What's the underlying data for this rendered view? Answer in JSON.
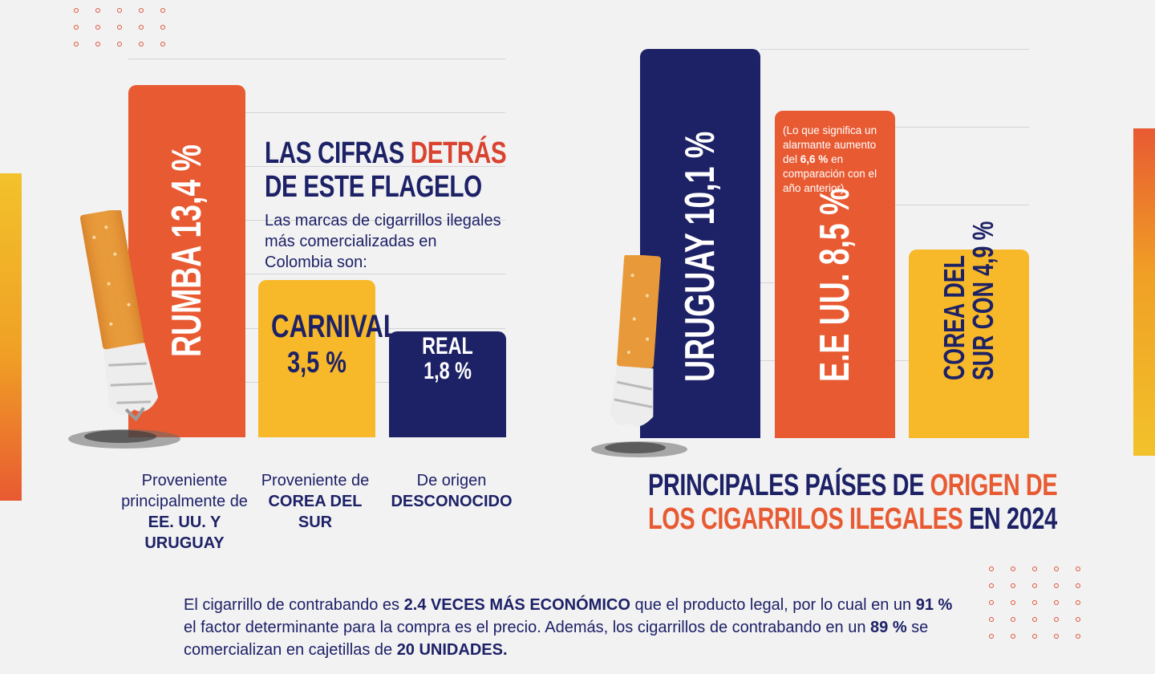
{
  "colors": {
    "navy": "#1d2166",
    "orange": "#e85a32",
    "yellow": "#f7b829",
    "red_accent": "#d9432f",
    "background": "#f2f2f3"
  },
  "left": {
    "title_part1": "LAS CIFRAS ",
    "title_accent": "DETRÁS",
    "title_line2": "DE ESTE FLAGELO",
    "subtitle": "Las marcas de cigarrillos ilegales más comercializadas en Colombia son:",
    "bar_labels": {
      "rumba": "RUMBA 13,4 %",
      "carnival_name": "CARNIVAL",
      "carnival_value": "3,5 %",
      "real_name": "REAL",
      "real_value": "1,8 %"
    },
    "captions": [
      {
        "pre": "Proveniente principalmente de ",
        "bold": "EE. UU. Y URUGUAY"
      },
      {
        "pre": "Proveniente de ",
        "bold": "COREA DEL SUR"
      },
      {
        "pre": "De origen ",
        "bold": "DESCONOCIDO"
      }
    ]
  },
  "right": {
    "bar_labels": {
      "uruguay": "URUGUAY 10,1 %",
      "eeuu": "E.E UU. 8,5 %",
      "corea_line1": "COREA DEL",
      "corea_line2": "SUR CON 4,9 %"
    },
    "note": {
      "pre": "(Lo que significa un alarmante aumento del ",
      "bold": "6,6 %",
      "post": " en comparación con el año anterior)"
    },
    "title_line1_a": "PRINCIPALES PAÍSES DE ",
    "title_line1_b": "ORIGEN DE",
    "title_line2_a": "LOS CIGARRILOS ILEGALES",
    "title_line2_b": " EN 2024"
  },
  "footer": {
    "p1": "El cigarrillo de contrabando es ",
    "b1": "2.4 VECES MÁS ECONÓMICO",
    "p2": " que el producto legal, por lo cual en un ",
    "b2": "91 %",
    "p3": " el factor determinante para la compra es el precio. Además, los cigarrillos de contrabando en un ",
    "b3": "89 %",
    "p4": " se comercializan en cajetillas de ",
    "b4": "20 UNIDADES."
  },
  "chart_data": [
    {
      "type": "bar",
      "categories": [
        "RUMBA",
        "CARNIVAL",
        "REAL"
      ],
      "values": [
        13.4,
        3.5,
        1.8
      ],
      "title": "LAS CIFRAS DETRÁS DE ESTE FLAGELO",
      "subtitle": "Las marcas de cigarrillos ilegales más comercializadas en Colombia son:",
      "unit": "%",
      "colors": [
        "#e85a32",
        "#f7b829",
        "#1d2166"
      ],
      "grid": true
    },
    {
      "type": "bar",
      "categories": [
        "URUGUAY",
        "E.E UU.",
        "COREA DEL SUR"
      ],
      "values": [
        10.1,
        8.5,
        4.9
      ],
      "title": "PRINCIPALES PAÍSES DE ORIGEN DE LOS CIGARRILOS ILEGALES EN 2024",
      "unit": "%",
      "colors": [
        "#1d2166",
        "#e85a32",
        "#f7b829"
      ],
      "grid": true
    }
  ]
}
